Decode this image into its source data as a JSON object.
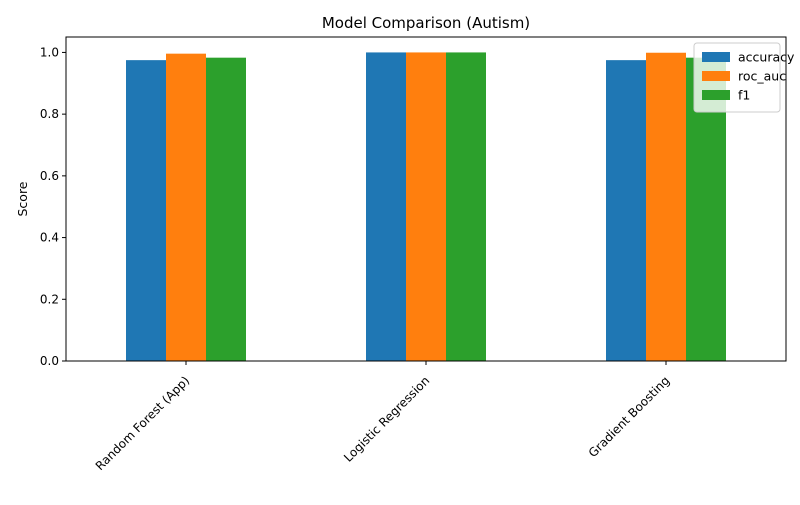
{
  "chart_data": {
    "type": "bar",
    "title": "Model Comparison (Autism)",
    "xlabel": "",
    "ylabel": "Score",
    "categories": [
      "Random Forest (App)",
      "Logistic Regression",
      "Gradient Boosting"
    ],
    "series": [
      {
        "name": "accuracy",
        "color": "#1f77b4",
        "values": [
          0.975,
          1.0,
          0.975
        ]
      },
      {
        "name": "roc_auc",
        "color": "#ff7f0e",
        "values": [
          0.996,
          1.0,
          0.999
        ]
      },
      {
        "name": "f1",
        "color": "#2ca02c",
        "values": [
          0.983,
          1.0,
          0.983
        ]
      }
    ],
    "ylim": [
      0,
      1.05
    ],
    "yticks": [
      "0.0",
      "0.2",
      "0.4",
      "0.6",
      "0.8",
      "1.0"
    ],
    "legend": "top-right",
    "grid": false
  }
}
